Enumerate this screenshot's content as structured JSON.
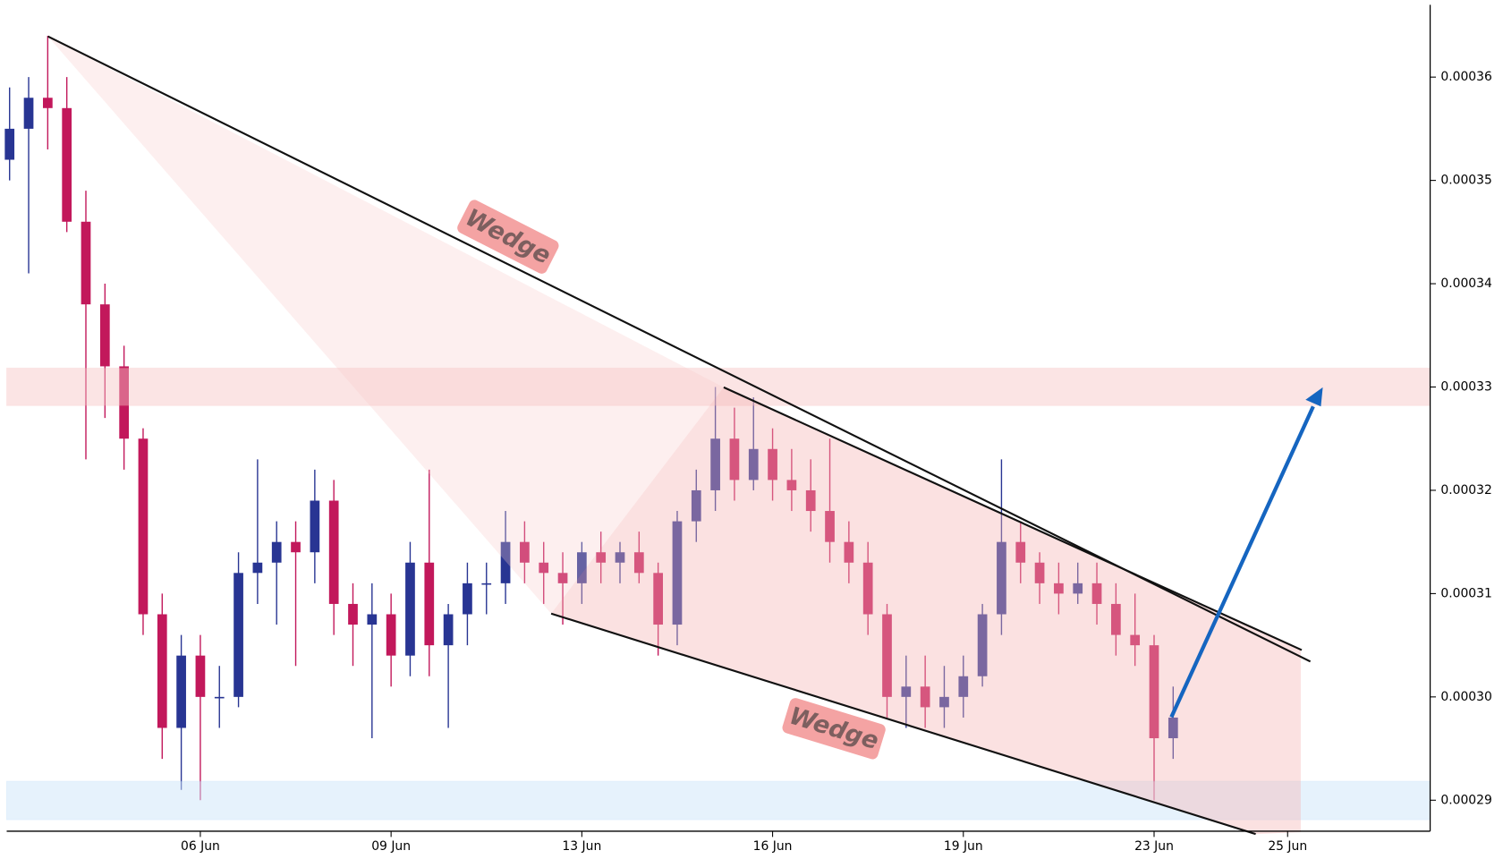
{
  "chart_data": {
    "type": "candlestick",
    "categories": [
      null,
      null,
      null,
      null,
      null,
      null,
      null,
      null,
      null,
      null,
      "06 Jun",
      null,
      null,
      null,
      null,
      null,
      null,
      null,
      null,
      null,
      "09 Jun",
      null,
      null,
      null,
      null,
      null,
      null,
      null,
      null,
      null,
      "13 Jun",
      null,
      null,
      null,
      null,
      null,
      null,
      null,
      null,
      null,
      "16 Jun",
      null,
      null,
      null,
      null,
      null,
      null,
      null,
      null,
      null,
      "19 Jun",
      null,
      null,
      null,
      null,
      null,
      null,
      null,
      null,
      null,
      "23 Jun",
      null,
      null,
      null,
      null,
      null,
      null,
      "25 Jun",
      null,
      null,
      null,
      null,
      null,
      null,
      null
    ],
    "open": [
      0.000352,
      0.000355,
      0.000358,
      0.000357,
      0.000346,
      0.000338,
      0.000332,
      0.000325,
      0.000308,
      0.000297,
      0.000304,
      0.0003,
      0.0003,
      0.000312,
      0.000313,
      0.000315,
      0.000314,
      0.000319,
      0.000309,
      0.000307,
      0.000308,
      0.000304,
      0.000313,
      0.000305,
      0.000308,
      0.000311,
      0.000311,
      0.000315,
      0.000313,
      0.000312,
      0.000311,
      0.000314,
      0.000313,
      0.000314,
      0.000312,
      0.000307,
      0.000317,
      0.00032,
      0.000325,
      0.000321,
      0.000324,
      0.000321,
      0.00032,
      0.000318,
      0.000315,
      0.000313,
      0.000308,
      0.0003,
      0.000301,
      0.000299,
      0.0003,
      0.000302,
      0.000308,
      0.000315,
      0.000313,
      0.000311,
      0.00031,
      0.000311,
      0.000309,
      0.000306,
      0.000305,
      0.000296,
      null,
      null,
      null,
      null,
      null,
      null,
      null,
      null,
      null,
      null,
      null,
      null,
      null
    ],
    "high": [
      0.000359,
      0.00036,
      0.000364,
      0.00036,
      0.000349,
      0.00034,
      0.000334,
      0.000326,
      0.00031,
      0.000306,
      0.000306,
      0.000303,
      0.000314,
      0.000323,
      0.000317,
      0.000317,
      0.000322,
      0.000321,
      0.000311,
      0.000311,
      0.00031,
      0.000315,
      0.000322,
      0.000309,
      0.000313,
      0.000313,
      0.000318,
      0.000317,
      0.000315,
      0.000314,
      0.000315,
      0.000316,
      0.000315,
      0.000316,
      0.000313,
      0.000318,
      0.000322,
      0.00033,
      0.000328,
      0.000329,
      0.000326,
      0.000324,
      0.000323,
      0.000325,
      0.000317,
      0.000315,
      0.000309,
      0.000304,
      0.000304,
      0.000303,
      0.000304,
      0.000309,
      0.000323,
      0.000317,
      0.000314,
      0.000313,
      0.000313,
      0.000313,
      0.000311,
      0.00031,
      0.000306,
      0.000301,
      null,
      null,
      null,
      null,
      null,
      null,
      null,
      null,
      null,
      null,
      null,
      null,
      null
    ],
    "low": [
      0.00035,
      0.000341,
      0.000353,
      0.000345,
      0.000323,
      0.000327,
      0.000322,
      0.000306,
      0.000294,
      0.000291,
      0.00029,
      0.000297,
      0.000299,
      0.000309,
      0.000307,
      0.000303,
      0.000311,
      0.000306,
      0.000303,
      0.000296,
      0.000301,
      0.000302,
      0.000302,
      0.000297,
      0.000305,
      0.000308,
      0.000309,
      0.000311,
      0.000309,
      0.000307,
      0.000309,
      0.000311,
      0.000311,
      0.000311,
      0.000304,
      0.000305,
      0.000315,
      0.000318,
      0.000319,
      0.00032,
      0.000319,
      0.000318,
      0.000316,
      0.000313,
      0.000311,
      0.000306,
      0.000298,
      0.000297,
      0.000297,
      0.000297,
      0.000298,
      0.000301,
      0.000306,
      0.000311,
      0.000309,
      0.000308,
      0.000309,
      0.000307,
      0.000304,
      0.000303,
      0.00029,
      0.000294,
      null,
      null,
      null,
      null,
      null,
      null,
      null,
      null,
      null,
      null,
      null,
      null,
      null
    ],
    "close": [
      0.000355,
      0.000358,
      0.000357,
      0.000346,
      0.000338,
      0.000332,
      0.000325,
      0.000308,
      0.000297,
      0.000304,
      0.0003,
      0.0003,
      0.000312,
      0.000313,
      0.000315,
      0.000314,
      0.000319,
      0.000309,
      0.000307,
      0.000308,
      0.000304,
      0.000313,
      0.000305,
      0.000308,
      0.000311,
      0.000311,
      0.000315,
      0.000313,
      0.000312,
      0.000311,
      0.000314,
      0.000313,
      0.000314,
      0.000312,
      0.000307,
      0.000317,
      0.00032,
      0.000325,
      0.000321,
      0.000324,
      0.000321,
      0.00032,
      0.000318,
      0.000315,
      0.000313,
      0.000308,
      0.0003,
      0.000301,
      0.000299,
      0.0003,
      0.000302,
      0.000308,
      0.000315,
      0.000313,
      0.000311,
      0.00031,
      0.000311,
      0.000309,
      0.000306,
      0.000305,
      0.000296,
      0.000298,
      null,
      null,
      null,
      null,
      null,
      null,
      null,
      null,
      null,
      null,
      null,
      null,
      null
    ],
    "up_color": "#283593",
    "down_color": "#c2185b",
    "ylim": [
      0.000287,
      0.000367
    ],
    "yticks": [
      0.00029,
      {
        "value": 0.0003,
        "label": "0.00030"
      },
      0.00031,
      0.00032,
      0.00033,
      0.00034,
      0.00035,
      0.00036
    ],
    "annotations": [
      "Wedge",
      "Wedge"
    ]
  }
}
